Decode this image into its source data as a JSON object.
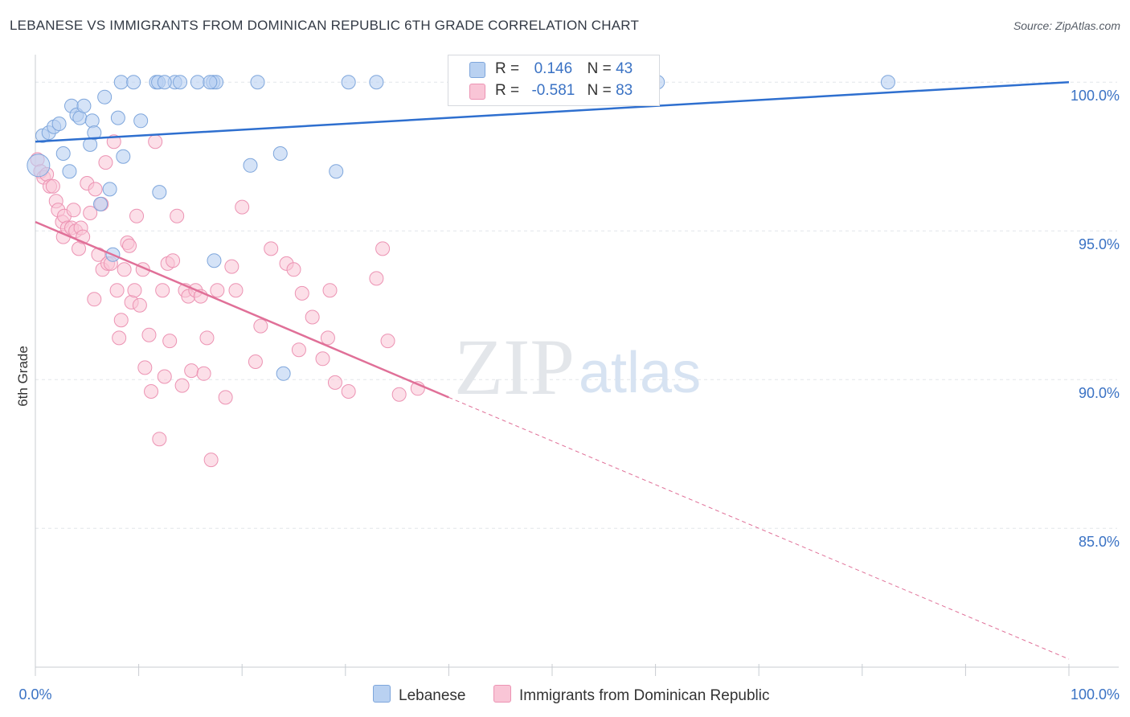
{
  "title": "LEBANESE VS IMMIGRANTS FROM DOMINICAN REPUBLIC 6TH GRADE CORRELATION CHART",
  "source": "Source: ZipAtlas.com",
  "watermark": {
    "zip": "ZIP",
    "atlas": "atlas"
  },
  "legend": {
    "r_label": "R =",
    "n_label": "N =",
    "rows": [
      {
        "r": "0.146",
        "n": "43",
        "color": "#b9d1f1"
      },
      {
        "r": "-0.581",
        "n": "83",
        "color": "#f9c5d6"
      }
    ]
  },
  "bottom_legend": [
    "Lebanese",
    "Immigrants from Dominican Republic"
  ],
  "chart_data": {
    "type": "scatter",
    "title": "LEBANESE VS IMMIGRANTS FROM DOMINICAN REPUBLIC 6TH GRADE CORRELATION CHART",
    "xlabel": "",
    "ylabel": "6th Grade",
    "xlim": [
      0,
      100
    ],
    "ylim": [
      80.6,
      100.6
    ],
    "x_tick_labels": [
      "0.0%",
      "100.0%"
    ],
    "y_tick_labels": [
      "100.0%",
      "95.0%",
      "90.0%",
      "85.0%"
    ],
    "y_ticks": [
      100,
      95,
      90,
      85
    ],
    "grid": true,
    "series": [
      {
        "name": "Lebanese",
        "color": "#7ea6dc",
        "fill": "#b9d1f1",
        "line_color": "#2e6fcf",
        "trend": {
          "x": [
            0,
            100
          ],
          "y": [
            98.0,
            100.0
          ]
        },
        "points": [
          [
            0.3,
            97.2
          ],
          [
            0.7,
            98.2
          ],
          [
            1.3,
            98.3
          ],
          [
            1.8,
            98.5
          ],
          [
            2.3,
            98.6
          ],
          [
            2.7,
            97.6
          ],
          [
            3.3,
            97.0
          ],
          [
            3.5,
            99.2
          ],
          [
            4.0,
            98.9
          ],
          [
            4.3,
            98.8
          ],
          [
            4.7,
            99.2
          ],
          [
            5.3,
            97.9
          ],
          [
            5.5,
            98.7
          ],
          [
            5.7,
            98.3
          ],
          [
            6.3,
            95.9
          ],
          [
            6.7,
            99.5
          ],
          [
            7.2,
            96.4
          ],
          [
            7.5,
            94.2
          ],
          [
            8.0,
            98.8
          ],
          [
            8.5,
            97.5
          ],
          [
            8.3,
            100.0
          ],
          [
            9.5,
            100.0
          ],
          [
            10.2,
            98.7
          ],
          [
            11.7,
            100.0
          ],
          [
            12.0,
            96.3
          ],
          [
            11.9,
            100.0
          ],
          [
            13.5,
            100.0
          ],
          [
            14.0,
            100.0
          ],
          [
            12.5,
            100.0
          ],
          [
            15.7,
            100.0
          ],
          [
            17.2,
            100.0
          ],
          [
            17.5,
            100.0
          ],
          [
            16.9,
            100.0
          ],
          [
            17.3,
            94.0
          ],
          [
            20.8,
            97.2
          ],
          [
            21.5,
            100.0
          ],
          [
            23.7,
            97.6
          ],
          [
            24.0,
            90.2
          ],
          [
            29.1,
            97.0
          ],
          [
            30.3,
            100.0
          ],
          [
            33.0,
            100.0
          ],
          [
            60.2,
            100.0
          ],
          [
            82.5,
            100.0
          ]
        ]
      },
      {
        "name": "Immigrants from Dominican Republic",
        "color": "#ec93b3",
        "fill": "#f9c5d6",
        "line_color": "#e07098",
        "trend_solid": {
          "x": [
            0,
            40
          ],
          "y": [
            95.3,
            89.4
          ]
        },
        "trend_dashed": {
          "x": [
            40,
            100
          ],
          "y": [
            89.4,
            80.6
          ]
        },
        "points": [
          [
            0.2,
            97.4
          ],
          [
            0.5,
            97.0
          ],
          [
            0.8,
            96.8
          ],
          [
            1.1,
            96.9
          ],
          [
            1.4,
            96.5
          ],
          [
            1.7,
            96.5
          ],
          [
            2.0,
            96.0
          ],
          [
            2.2,
            95.7
          ],
          [
            2.6,
            95.3
          ],
          [
            2.7,
            94.8
          ],
          [
            2.8,
            95.5
          ],
          [
            3.1,
            95.1
          ],
          [
            3.5,
            95.1
          ],
          [
            3.7,
            95.7
          ],
          [
            3.9,
            95.0
          ],
          [
            4.2,
            94.4
          ],
          [
            4.4,
            95.1
          ],
          [
            4.6,
            94.8
          ],
          [
            5.0,
            96.6
          ],
          [
            5.3,
            95.6
          ],
          [
            5.7,
            92.7
          ],
          [
            5.8,
            96.4
          ],
          [
            6.1,
            94.2
          ],
          [
            6.4,
            95.9
          ],
          [
            6.5,
            93.7
          ],
          [
            6.8,
            97.3
          ],
          [
            7.0,
            93.9
          ],
          [
            7.3,
            93.9
          ],
          [
            7.6,
            98.0
          ],
          [
            7.9,
            93.0
          ],
          [
            8.1,
            91.4
          ],
          [
            8.3,
            92.0
          ],
          [
            8.6,
            93.7
          ],
          [
            8.9,
            94.6
          ],
          [
            9.1,
            94.5
          ],
          [
            9.3,
            92.6
          ],
          [
            9.6,
            93.0
          ],
          [
            9.8,
            95.5
          ],
          [
            10.1,
            92.5
          ],
          [
            10.4,
            93.7
          ],
          [
            10.6,
            90.4
          ],
          [
            11.0,
            91.5
          ],
          [
            11.2,
            89.6
          ],
          [
            11.6,
            98.0
          ],
          [
            12.0,
            88.0
          ],
          [
            12.3,
            93.0
          ],
          [
            12.5,
            90.1
          ],
          [
            12.8,
            93.9
          ],
          [
            13.0,
            91.3
          ],
          [
            13.3,
            94.0
          ],
          [
            13.7,
            95.5
          ],
          [
            14.2,
            89.8
          ],
          [
            14.5,
            93.0
          ],
          [
            14.8,
            92.8
          ],
          [
            15.1,
            90.3
          ],
          [
            15.5,
            93.0
          ],
          [
            16.0,
            92.8
          ],
          [
            16.3,
            90.2
          ],
          [
            16.6,
            91.4
          ],
          [
            17.0,
            87.3
          ],
          [
            17.6,
            93.0
          ],
          [
            18.4,
            89.4
          ],
          [
            19.0,
            93.8
          ],
          [
            19.4,
            93.0
          ],
          [
            20.0,
            95.8
          ],
          [
            21.3,
            90.6
          ],
          [
            21.8,
            91.8
          ],
          [
            22.8,
            94.4
          ],
          [
            24.3,
            93.9
          ],
          [
            25.0,
            93.7
          ],
          [
            25.5,
            91.0
          ],
          [
            25.8,
            92.9
          ],
          [
            26.8,
            92.1
          ],
          [
            27.8,
            90.7
          ],
          [
            28.3,
            91.4
          ],
          [
            28.5,
            93.0
          ],
          [
            29.0,
            89.9
          ],
          [
            30.3,
            89.6
          ],
          [
            33.0,
            93.4
          ],
          [
            33.6,
            94.4
          ],
          [
            34.1,
            91.3
          ],
          [
            35.2,
            89.5
          ],
          [
            37.0,
            89.7
          ]
        ]
      }
    ]
  }
}
